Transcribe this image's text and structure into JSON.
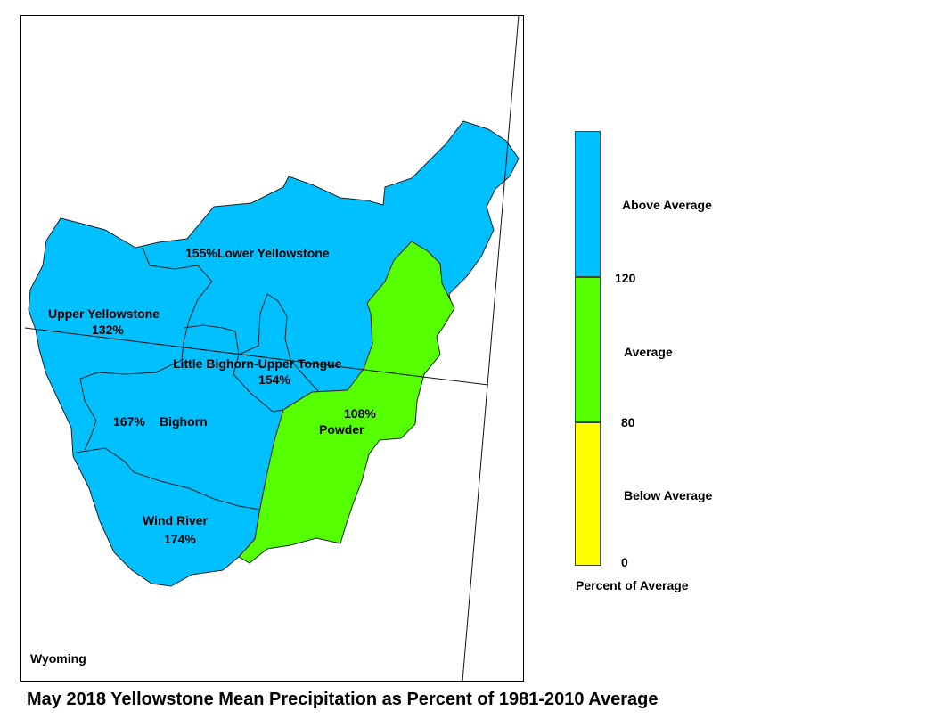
{
  "map": {
    "state_label": "Wyoming",
    "basins": [
      {
        "name": "Lower Yellowstone",
        "percent": "155%",
        "category": "above"
      },
      {
        "name": "Upper Yellowstone",
        "percent": "132%",
        "category": "above"
      },
      {
        "name": "Little Bighorn-Upper Tongue",
        "percent": "154%",
        "category": "above"
      },
      {
        "name": "Bighorn",
        "percent": "167%",
        "category": "above"
      },
      {
        "name": "Wind River",
        "percent": "174%",
        "category": "above"
      },
      {
        "name": "Powder",
        "percent": "108%",
        "category": "average"
      }
    ]
  },
  "legend": {
    "classes": [
      {
        "label": "Above Average",
        "color": "#00c0ff"
      },
      {
        "label": "Average",
        "color": "#55ff00"
      },
      {
        "label": "Below Average",
        "color": "#ffff00"
      }
    ],
    "breaks": [
      "120",
      "80",
      "0"
    ],
    "caption": "Percent of Average"
  },
  "title": "May 2018 Yellowstone Mean Precipitation as Percent of 1981-2010 Average"
}
